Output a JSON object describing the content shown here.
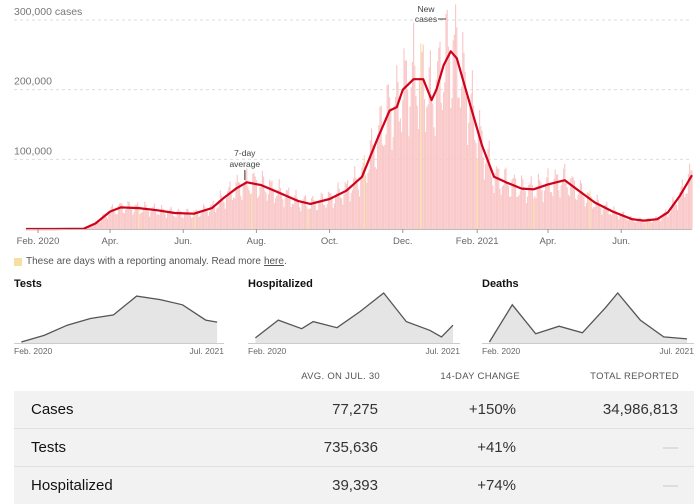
{
  "colors": {
    "line": "#d0021b",
    "bars": "#f9c5c5",
    "anomaly": "#f6e0a0",
    "small_line": "#555555",
    "small_fill": "#e5e5e5"
  },
  "note": {
    "text": "These are days with a reporting anomaly. Read more",
    "link": "here",
    "end": "."
  },
  "chart_data": [
    {
      "type": "area",
      "title": "",
      "ylabel": "cases",
      "ylim": [
        0,
        300000
      ],
      "y_ticks": [
        "300,000 cases",
        "200,000",
        "100,000"
      ],
      "x_ticks": [
        "Feb. 2020",
        "Apr.",
        "Jun.",
        "Aug.",
        "Oct.",
        "Dec.",
        "Feb. 2021",
        "Apr.",
        "Jun."
      ],
      "annotations": {
        "average": "7-day average",
        "new_cases": "New cases"
      },
      "series": [
        {
          "name": "7-day average",
          "x": [
            "2020-01-22",
            "2020-02-15",
            "2020-03-10",
            "2020-03-20",
            "2020-04-01",
            "2020-04-10",
            "2020-04-25",
            "2020-05-10",
            "2020-05-25",
            "2020-06-10",
            "2020-06-25",
            "2020-07-05",
            "2020-07-15",
            "2020-07-24",
            "2020-08-05",
            "2020-08-20",
            "2020-09-05",
            "2020-09-15",
            "2020-10-01",
            "2020-10-15",
            "2020-10-28",
            "2020-11-10",
            "2020-11-20",
            "2020-11-26",
            "2020-12-01",
            "2020-12-10",
            "2020-12-18",
            "2020-12-25",
            "2020-12-29",
            "2021-01-04",
            "2021-01-10",
            "2021-01-15",
            "2021-01-25",
            "2021-02-05",
            "2021-02-15",
            "2021-02-25",
            "2021-03-10",
            "2021-03-20",
            "2021-04-01",
            "2021-04-15",
            "2021-04-25",
            "2021-05-10",
            "2021-05-25",
            "2021-06-10",
            "2021-06-20",
            "2021-07-01",
            "2021-07-10",
            "2021-07-20",
            "2021-07-30"
          ],
          "values": [
            0,
            0,
            500,
            8000,
            25000,
            31000,
            30000,
            27000,
            23000,
            22000,
            30000,
            45000,
            58000,
            67000,
            63000,
            52000,
            40000,
            36000,
            43000,
            55000,
            75000,
            130000,
            170000,
            175000,
            200000,
            215000,
            215000,
            185000,
            200000,
            235000,
            255000,
            245000,
            185000,
            120000,
            75000,
            67000,
            58000,
            57000,
            64000,
            70000,
            57000,
            38000,
            25000,
            14000,
            12000,
            14000,
            24000,
            48000,
            77275
          ]
        }
      ]
    },
    {
      "type": "area",
      "title": "Tests",
      "x_ticks": [
        "Feb. 2020",
        "Jul. 2021"
      ],
      "x": [
        "2020-02",
        "2020-04",
        "2020-06",
        "2020-08",
        "2020-10",
        "2020-12",
        "2021-02",
        "2021-04",
        "2021-06",
        "2021-07"
      ],
      "values": [
        0.02,
        0.15,
        0.35,
        0.48,
        0.55,
        0.92,
        0.85,
        0.75,
        0.45,
        0.41
      ]
    },
    {
      "type": "area",
      "title": "Hospitalized",
      "x_ticks": [
        "Feb. 2020",
        "Jul. 2021"
      ],
      "x": [
        "2020-02",
        "2020-04",
        "2020-06",
        "2020-07",
        "2020-09",
        "2020-11",
        "2021-01",
        "2021-03",
        "2021-05",
        "2021-06",
        "2021-07"
      ],
      "values": [
        0.1,
        0.45,
        0.28,
        0.42,
        0.3,
        0.62,
        0.98,
        0.42,
        0.25,
        0.12,
        0.35
      ]
    },
    {
      "type": "area",
      "title": "Deaths",
      "x_ticks": [
        "Feb. 2020",
        "Jul. 2021"
      ],
      "x": [
        "2020-02",
        "2020-04",
        "2020-06",
        "2020-08",
        "2020-10",
        "2020-12",
        "2021-01",
        "2021-03",
        "2021-05",
        "2021-07"
      ],
      "values": [
        0.02,
        0.75,
        0.18,
        0.33,
        0.2,
        0.7,
        0.98,
        0.45,
        0.12,
        0.08
      ]
    }
  ],
  "stats": {
    "headers": [
      "AVG. ON JUL. 30",
      "14-DAY CHANGE",
      "TOTAL REPORTED"
    ],
    "rows": [
      {
        "label": "Cases",
        "avg": "77,275",
        "change": "+150%",
        "total": "34,986,813"
      },
      {
        "label": "Tests",
        "avg": "735,636",
        "change": "+41%",
        "total": "—"
      },
      {
        "label": "Hospitalized",
        "avg": "39,393",
        "change": "+74%",
        "total": "—"
      }
    ]
  }
}
